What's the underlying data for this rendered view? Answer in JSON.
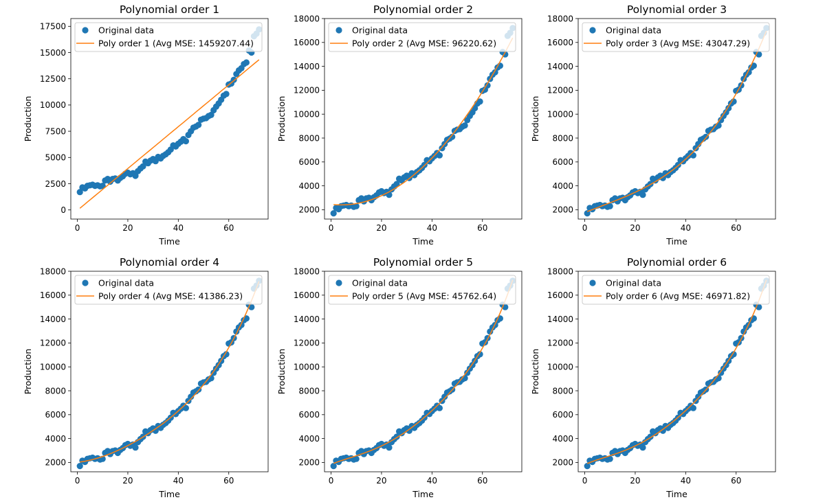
{
  "figure": {
    "ylabel": "Production",
    "xlabel": "Time"
  },
  "colors": {
    "data": "#1f77b4",
    "fit": "#ff7f0e",
    "axis": "#000000",
    "legend_edge": "#cccccc"
  },
  "chart_data": [
    {
      "type": "scatter",
      "title": "Polynomial order 1",
      "xlabel": "Time",
      "ylabel": "Production",
      "xlim": [
        -2.6,
        75.6
      ],
      "ylim": [
        -870,
        18240
      ],
      "xticks": [
        0,
        20,
        40,
        60
      ],
      "yticks": [
        0,
        2500,
        5000,
        7500,
        10000,
        12500,
        15000,
        17500
      ],
      "legend": [
        "Original data",
        "Poly order 1 (Avg MSE: 1459207.44)"
      ],
      "legend_position": "upper-left",
      "fit_order": 1
    },
    {
      "type": "scatter",
      "title": "Polynomial order 2",
      "xlabel": "Time",
      "ylabel": "Production",
      "xlim": [
        -2.6,
        75.6
      ],
      "ylim": [
        1220,
        18000
      ],
      "xticks": [
        0,
        20,
        40,
        60
      ],
      "yticks": [
        2000,
        4000,
        6000,
        8000,
        10000,
        12000,
        14000,
        16000,
        18000
      ],
      "legend": [
        "Original data",
        "Poly order 2 (Avg MSE: 96220.62)"
      ],
      "legend_position": "upper-left",
      "fit_order": 2
    },
    {
      "type": "scatter",
      "title": "Polynomial order 3",
      "xlabel": "Time",
      "ylabel": "Production",
      "xlim": [
        -2.6,
        75.6
      ],
      "ylim": [
        1220,
        18000
      ],
      "xticks": [
        0,
        20,
        40,
        60
      ],
      "yticks": [
        2000,
        4000,
        6000,
        8000,
        10000,
        12000,
        14000,
        16000,
        18000
      ],
      "legend": [
        "Original data",
        "Poly order 3 (Avg MSE: 43047.29)"
      ],
      "legend_position": "upper-left",
      "fit_order": 3
    },
    {
      "type": "scatter",
      "title": "Polynomial order 4",
      "xlabel": "Time",
      "ylabel": "Production",
      "xlim": [
        -2.6,
        75.6
      ],
      "ylim": [
        1220,
        18000
      ],
      "xticks": [
        0,
        20,
        40,
        60
      ],
      "yticks": [
        2000,
        4000,
        6000,
        8000,
        10000,
        12000,
        14000,
        16000,
        18000
      ],
      "legend": [
        "Original data",
        "Poly order 4 (Avg MSE: 41386.23)"
      ],
      "legend_position": "upper-left",
      "fit_order": 4
    },
    {
      "type": "scatter",
      "title": "Polynomial order 5",
      "xlabel": "Time",
      "ylabel": "Production",
      "xlim": [
        -2.6,
        75.6
      ],
      "ylim": [
        1220,
        18000
      ],
      "xticks": [
        0,
        20,
        40,
        60
      ],
      "yticks": [
        2000,
        4000,
        6000,
        8000,
        10000,
        12000,
        14000,
        16000,
        18000
      ],
      "legend": [
        "Original data",
        "Poly order 5 (Avg MSE: 45762.64)"
      ],
      "legend_position": "upper-left",
      "fit_order": 5
    },
    {
      "type": "scatter",
      "title": "Polynomial order 6",
      "xlabel": "Time",
      "ylabel": "Production",
      "xlim": [
        -2.6,
        75.6
      ],
      "ylim": [
        1220,
        18000
      ],
      "xticks": [
        0,
        20,
        40,
        60
      ],
      "yticks": [
        2000,
        4000,
        6000,
        8000,
        10000,
        12000,
        14000,
        16000,
        18000
      ],
      "legend": [
        "Original data",
        "Poly order 6 (Avg MSE: 46971.82)"
      ],
      "legend_position": "upper-left",
      "fit_order": 6
    }
  ],
  "series_data": {
    "x": [
      1,
      2,
      3,
      4,
      5,
      6,
      7,
      8,
      9,
      10,
      11,
      12,
      13,
      14,
      15,
      16,
      17,
      18,
      19,
      20,
      21,
      22,
      23,
      24,
      25,
      26,
      27,
      28,
      29,
      30,
      31,
      32,
      33,
      34,
      35,
      36,
      37,
      38,
      39,
      40,
      41,
      42,
      43,
      44,
      45,
      46,
      47,
      48,
      49,
      50,
      51,
      52,
      53,
      54,
      55,
      56,
      57,
      58,
      59,
      60,
      61,
      62,
      63,
      64,
      65,
      66,
      67,
      68,
      69,
      70,
      71,
      72
    ],
    "y": [
      1700,
      2150,
      2050,
      2300,
      2350,
      2400,
      2300,
      2350,
      2250,
      2300,
      2800,
      2950,
      2700,
      2950,
      3000,
      2800,
      3050,
      3200,
      3450,
      3550,
      3400,
      3500,
      3250,
      3700,
      3950,
      4150,
      4600,
      4450,
      4700,
      4850,
      4650,
      5050,
      4900,
      5150,
      5300,
      5500,
      5750,
      6150,
      6050,
      6300,
      6500,
      6750,
      6550,
      7150,
      7500,
      7850,
      7950,
      8100,
      8600,
      8700,
      8750,
      8950,
      9050,
      9500,
      9850,
      10150,
      10500,
      10900,
      11050,
      11950,
      12050,
      12400,
      12950,
      13300,
      13500,
      13900,
      14050,
      15200,
      15000,
      16550,
      16800,
      17200
    ]
  }
}
